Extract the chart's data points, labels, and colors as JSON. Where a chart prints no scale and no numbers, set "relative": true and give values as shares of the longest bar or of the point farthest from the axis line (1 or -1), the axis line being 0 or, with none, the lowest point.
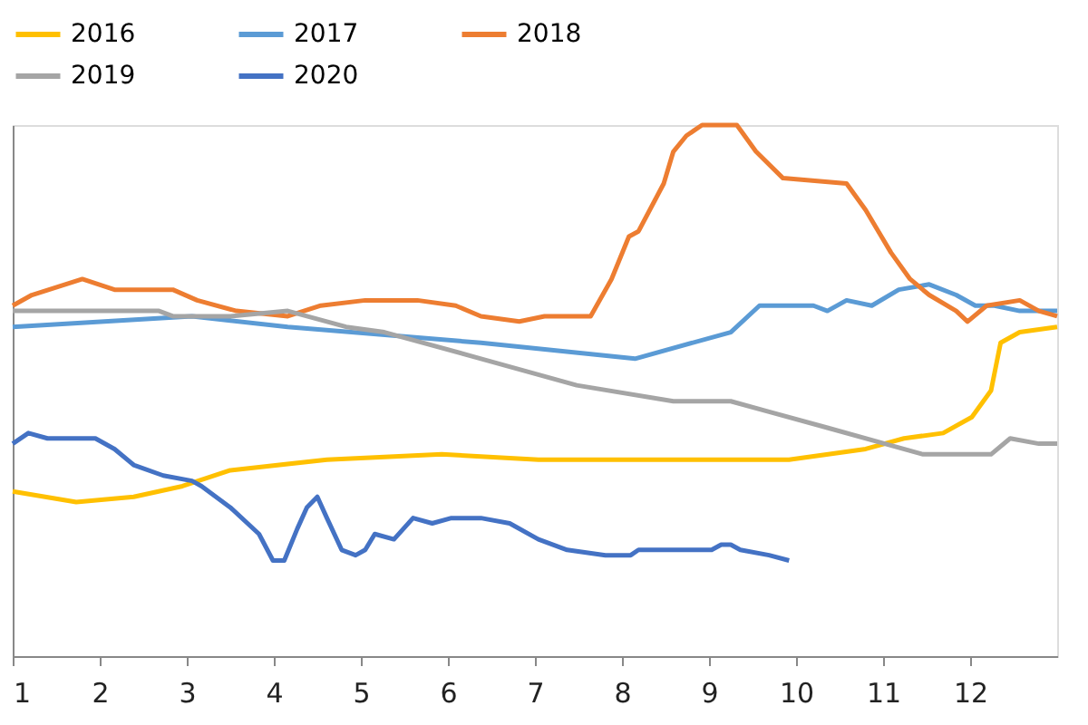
{
  "chart_data": {
    "type": "line",
    "relative": true,
    "xlim": [
      1,
      13
    ],
    "xticks": [
      1,
      2,
      3,
      4,
      5,
      6,
      7,
      8,
      9,
      10,
      11,
      12
    ],
    "grid": false,
    "legend": "top",
    "line_style": "solid",
    "marker": "none",
    "series": [
      {
        "name": "2016",
        "color": "#ffc000",
        "x": [
          1.0,
          1.73,
          2.39,
          2.95,
          3.5,
          4.61,
          5.93,
          7.04,
          8.15,
          9.03,
          9.92,
          10.8,
          11.24,
          11.69,
          12.02,
          12.24,
          12.35,
          12.57,
          13.0
        ],
        "values": [
          0.31,
          0.29,
          0.3,
          0.32,
          0.35,
          0.37,
          0.38,
          0.37,
          0.37,
          0.37,
          0.37,
          0.39,
          0.41,
          0.42,
          0.45,
          0.5,
          0.59,
          0.61,
          0.62
        ]
      },
      {
        "name": "2017",
        "color": "#5b9bd5",
        "x": [
          1.0,
          3.06,
          4.16,
          6.38,
          8.15,
          9.25,
          9.58,
          10.2,
          10.36,
          10.58,
          10.87,
          11.18,
          11.53,
          11.84,
          12.06,
          12.28,
          12.57,
          13.0
        ],
        "values": [
          0.62,
          0.64,
          0.62,
          0.59,
          0.56,
          0.61,
          0.66,
          0.66,
          0.65,
          0.67,
          0.66,
          0.69,
          0.7,
          0.68,
          0.66,
          0.66,
          0.65,
          0.65
        ]
      },
      {
        "name": "2018",
        "color": "#ed7d31",
        "x": [
          1.0,
          1.22,
          1.8,
          2.17,
          2.84,
          3.12,
          3.57,
          4.16,
          4.54,
          5.05,
          5.65,
          6.09,
          6.38,
          6.82,
          7.11,
          7.64,
          7.88,
          8.08,
          8.19,
          8.48,
          8.59,
          8.74,
          8.92,
          9.32,
          9.54,
          9.85,
          10.58,
          10.8,
          11.09,
          11.31,
          11.53,
          11.84,
          11.97,
          12.19,
          12.57,
          12.79,
          13.0
        ],
        "values": [
          0.66,
          0.68,
          0.71,
          0.69,
          0.69,
          0.67,
          0.65,
          0.64,
          0.66,
          0.67,
          0.67,
          0.66,
          0.64,
          0.63,
          0.64,
          0.64,
          0.71,
          0.79,
          0.8,
          0.89,
          0.95,
          0.98,
          1.0,
          1.0,
          0.95,
          0.9,
          0.89,
          0.84,
          0.76,
          0.71,
          0.68,
          0.65,
          0.63,
          0.66,
          0.67,
          0.65,
          0.64
        ]
      },
      {
        "name": "2019",
        "color": "#a5a5a5",
        "x": [
          1.0,
          1.51,
          2.68,
          2.84,
          3.17,
          3.5,
          4.16,
          4.38,
          4.83,
          5.27,
          6.38,
          7.48,
          8.59,
          9.25,
          9.69,
          10.36,
          11.02,
          11.46,
          12.24,
          12.46,
          12.79,
          13.0
        ],
        "values": [
          0.65,
          0.65,
          0.65,
          0.64,
          0.64,
          0.64,
          0.65,
          0.64,
          0.62,
          0.61,
          0.56,
          0.51,
          0.48,
          0.48,
          0.46,
          0.43,
          0.4,
          0.38,
          0.38,
          0.41,
          0.4,
          0.4
        ]
      },
      {
        "name": "2020",
        "color": "#4472c4",
        "x": [
          1.0,
          1.18,
          1.4,
          1.95,
          2.17,
          2.39,
          2.73,
          3.06,
          3.17,
          3.5,
          3.83,
          3.99,
          4.12,
          4.27,
          4.38,
          4.5,
          4.61,
          4.78,
          4.94,
          5.05,
          5.16,
          5.38,
          5.6,
          5.82,
          6.04,
          6.27,
          6.38,
          6.71,
          7.04,
          7.37,
          7.81,
          8.1,
          8.19,
          8.59,
          9.03,
          9.14,
          9.25,
          9.36,
          9.69,
          9.92
        ],
        "values": [
          0.4,
          0.42,
          0.41,
          0.41,
          0.39,
          0.36,
          0.34,
          0.33,
          0.32,
          0.28,
          0.23,
          0.18,
          0.18,
          0.24,
          0.28,
          0.3,
          0.26,
          0.2,
          0.19,
          0.2,
          0.23,
          0.22,
          0.26,
          0.25,
          0.26,
          0.26,
          0.26,
          0.25,
          0.22,
          0.2,
          0.19,
          0.19,
          0.2,
          0.2,
          0.2,
          0.21,
          0.21,
          0.2,
          0.19,
          0.18
        ]
      }
    ]
  }
}
